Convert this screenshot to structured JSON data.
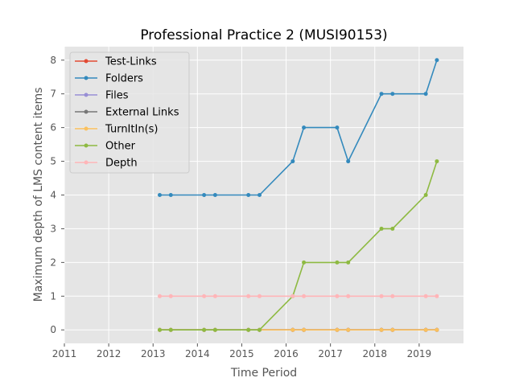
{
  "chart_data": {
    "type": "line",
    "title": "Professional Practice 2 (MUSI90153)",
    "xlabel": "Time Period",
    "ylabel": "Maximum depth of LMS content items",
    "xlim": [
      2011,
      2020
    ],
    "ylim": [
      -0.4,
      8.4
    ],
    "x_ticks": [
      2011,
      2012,
      2013,
      2014,
      2015,
      2016,
      2017,
      2018,
      2019
    ],
    "y_ticks": [
      0,
      1,
      2,
      3,
      4,
      5,
      6,
      7,
      8
    ],
    "grid": true,
    "legend_position": "top-left",
    "x": [
      2013.15,
      2013.4,
      2014.15,
      2014.4,
      2015.15,
      2015.4,
      2016.15,
      2016.4,
      2017.15,
      2017.4,
      2018.15,
      2018.4,
      2019.15,
      2019.4
    ],
    "series": [
      {
        "name": "Test-Links",
        "color": "#E24A33",
        "values": [
          0,
          0,
          0,
          0,
          0,
          0,
          0,
          0,
          0,
          0,
          0,
          0,
          0,
          0
        ]
      },
      {
        "name": "Folders",
        "color": "#348ABD",
        "values": [
          4,
          4,
          4,
          4,
          4,
          4,
          5,
          6,
          6,
          5,
          7,
          7,
          7,
          8
        ]
      },
      {
        "name": "Files",
        "color": "#988ED5",
        "values": [
          0,
          0,
          0,
          0,
          0,
          0,
          0,
          0,
          0,
          0,
          0,
          0,
          0,
          0
        ]
      },
      {
        "name": "External Links",
        "color": "#777777",
        "values": [
          0,
          0,
          0,
          0,
          0,
          0,
          0,
          0,
          0,
          0,
          0,
          0,
          0,
          0
        ]
      },
      {
        "name": "TurnItIn(s)",
        "color": "#FBC15E",
        "values": [
          0,
          0,
          0,
          0,
          0,
          0,
          0,
          0,
          0,
          0,
          0,
          0,
          0,
          0
        ]
      },
      {
        "name": "Other",
        "color": "#8EBA42",
        "values": [
          0,
          0,
          0,
          0,
          0,
          0,
          1,
          2,
          2,
          2,
          3,
          3,
          4,
          5
        ]
      },
      {
        "name": "Depth",
        "color": "#FFB5B8",
        "values": [
          1,
          1,
          1,
          1,
          1,
          1,
          1,
          1,
          1,
          1,
          1,
          1,
          1,
          1
        ]
      }
    ]
  }
}
